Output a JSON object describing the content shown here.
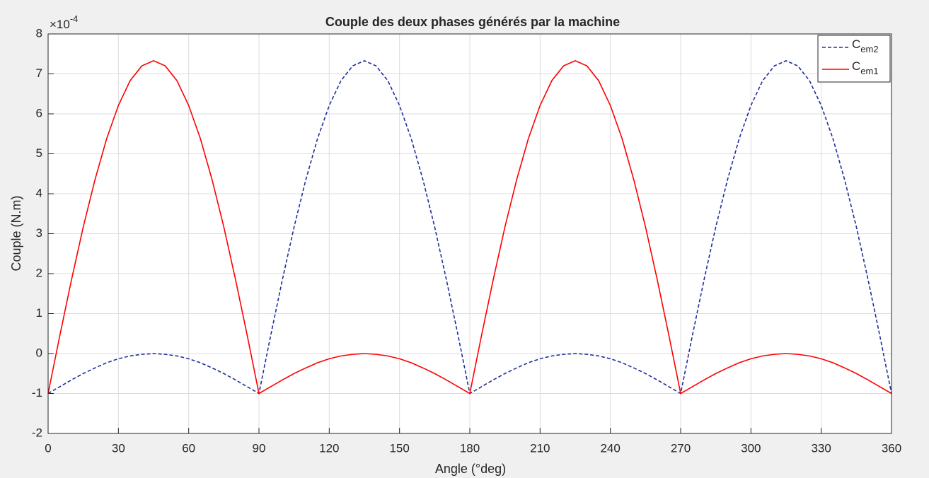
{
  "chart_data": {
    "type": "line",
    "title": "Couple des deux phases générés par la machine",
    "xlabel": "Angle (°deg)",
    "ylabel": "Couple (N.m)",
    "y_multiplier": {
      "base": "×10",
      "exponent": "-4"
    },
    "x": [
      0,
      5,
      10,
      15,
      20,
      25,
      30,
      35,
      40,
      45,
      50,
      55,
      60,
      65,
      70,
      75,
      80,
      85,
      90,
      95,
      100,
      105,
      110,
      115,
      120,
      125,
      130,
      135,
      140,
      145,
      150,
      155,
      160,
      165,
      170,
      175,
      180,
      185,
      190,
      195,
      200,
      205,
      210,
      215,
      220,
      225,
      230,
      235,
      240,
      245,
      250,
      255,
      260,
      265,
      270,
      275,
      280,
      285,
      290,
      295,
      300,
      305,
      310,
      315,
      320,
      325,
      330,
      335,
      340,
      345,
      350,
      355,
      360
    ],
    "series": [
      {
        "name": "Cem2",
        "color": "#1f2f9a",
        "dash": true,
        "values": [
          -1,
          -0.83,
          -0.66,
          -0.5,
          -0.36,
          -0.23,
          -0.13,
          -0.06,
          -0.02,
          0,
          -0.02,
          -0.06,
          -0.13,
          -0.23,
          -0.36,
          -0.5,
          -0.66,
          -0.83,
          -1,
          0.45,
          1.85,
          3.17,
          4.35,
          5.38,
          6.21,
          6.83,
          7.2,
          7.33,
          7.2,
          6.83,
          6.21,
          5.38,
          4.35,
          3.17,
          1.85,
          0.45,
          -1,
          -0.83,
          -0.66,
          -0.5,
          -0.36,
          -0.23,
          -0.13,
          -0.06,
          -0.02,
          0,
          -0.02,
          -0.06,
          -0.13,
          -0.23,
          -0.36,
          -0.5,
          -0.66,
          -0.83,
          -1,
          0.45,
          1.85,
          3.17,
          4.35,
          5.38,
          6.21,
          6.83,
          7.2,
          7.33,
          7.2,
          6.83,
          6.21,
          5.38,
          4.35,
          3.17,
          1.85,
          0.45,
          -1
        ]
      },
      {
        "name": "Cem1",
        "color": "#ff0000",
        "dash": false,
        "values": [
          -1,
          0.45,
          1.85,
          3.17,
          4.35,
          5.38,
          6.21,
          6.83,
          7.2,
          7.33,
          7.2,
          6.83,
          6.21,
          5.38,
          4.35,
          3.17,
          1.85,
          0.45,
          -1,
          -0.83,
          -0.66,
          -0.5,
          -0.36,
          -0.23,
          -0.13,
          -0.06,
          -0.02,
          0,
          -0.02,
          -0.06,
          -0.13,
          -0.23,
          -0.36,
          -0.5,
          -0.66,
          -0.83,
          -1,
          0.45,
          1.85,
          3.17,
          4.35,
          5.38,
          6.21,
          6.83,
          7.2,
          7.33,
          7.2,
          6.83,
          6.21,
          5.38,
          4.35,
          3.17,
          1.85,
          0.45,
          -1,
          -0.83,
          -0.66,
          -0.5,
          -0.36,
          -0.23,
          -0.13,
          -0.06,
          -0.02,
          0,
          -0.02,
          -0.06,
          -0.13,
          -0.23,
          -0.36,
          -0.5,
          -0.66,
          -0.83,
          -1
        ]
      }
    ],
    "xlim": [
      0,
      360
    ],
    "xticks": [
      0,
      30,
      60,
      90,
      120,
      150,
      180,
      210,
      240,
      270,
      300,
      330,
      360
    ],
    "ylim": [
      -2,
      8
    ],
    "yticks": [
      -2,
      -1,
      0,
      1,
      2,
      3,
      4,
      5,
      6,
      7,
      8
    ],
    "grid": true,
    "legend": "northeast"
  }
}
